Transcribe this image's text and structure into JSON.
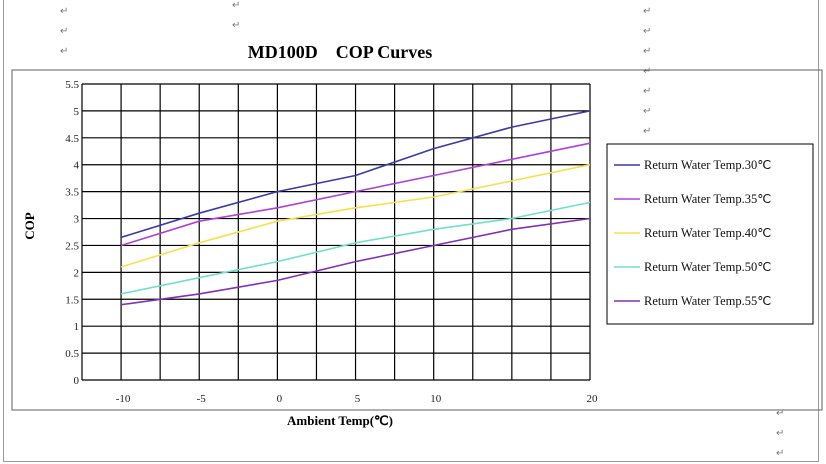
{
  "chart_data": {
    "type": "line",
    "title": "MD100D    COP Curves",
    "xlabel": "Ambient Temp(℃)",
    "ylabel": "COP",
    "x": [
      -10,
      -5,
      0,
      5,
      10,
      15,
      20
    ],
    "xlim": [
      -12.5,
      20
    ],
    "ylim": [
      0,
      5.5
    ],
    "x_ticks": [
      "-10",
      "-5",
      "0",
      "5",
      "10",
      "20"
    ],
    "x_tick_values": [
      -10,
      -5,
      0,
      5,
      10,
      20
    ],
    "y_ticks": [
      "0",
      "0.5",
      "1",
      "1.5",
      "2",
      "2.5",
      "3",
      "3.5",
      "4",
      "4.5",
      "5",
      "5.5"
    ],
    "y_tick_values": [
      0,
      0.5,
      1,
      1.5,
      2,
      2.5,
      3,
      3.5,
      4,
      4.5,
      5,
      5.5
    ],
    "grid": true,
    "legend_position": "right",
    "series": [
      {
        "name": "Return Water Temp.30℃",
        "color": "#3a3aa8",
        "values": [
          2.65,
          3.1,
          3.5,
          3.8,
          4.3,
          4.7,
          5.0
        ]
      },
      {
        "name": "Return Water Temp.35℃",
        "color": "#b040d8",
        "values": [
          2.5,
          2.95,
          3.2,
          3.5,
          3.8,
          4.1,
          4.4
        ]
      },
      {
        "name": "Return Water Temp.40℃",
        "color": "#f5e050",
        "values": [
          2.1,
          2.55,
          2.95,
          3.2,
          3.4,
          3.7,
          4.0
        ]
      },
      {
        "name": "Return Water Temp.50℃",
        "color": "#70e0c8",
        "values": [
          1.6,
          1.9,
          2.2,
          2.55,
          2.8,
          3.0,
          3.3
        ]
      },
      {
        "name": "Return Water Temp.55℃",
        "color": "#8030b8",
        "values": [
          1.4,
          1.6,
          1.85,
          2.2,
          2.5,
          2.8,
          3.0
        ]
      }
    ]
  }
}
